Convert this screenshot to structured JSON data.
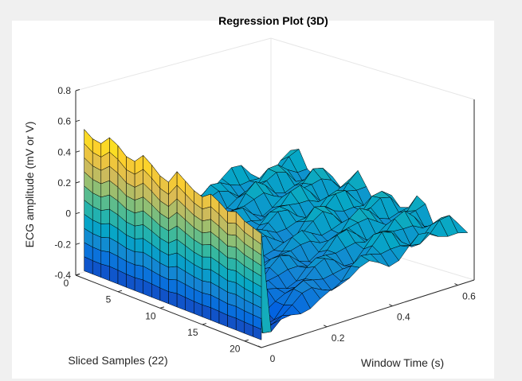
{
  "chart_data": {
    "type": "surface3d",
    "title": "Regression Plot (3D)",
    "xlabel": "Window Time (s)",
    "ylabel": "Sliced Samples (22)",
    "zlabel": "ECG amplitude (mV or V)",
    "xlim": [
      0,
      0.65
    ],
    "ylim": [
      0,
      22
    ],
    "zlim": [
      -0.4,
      0.8
    ],
    "x_ticks": [
      "0",
      "0.2",
      "0.4",
      "0.6"
    ],
    "x_tick_values": [
      0,
      0.2,
      0.4,
      0.6
    ],
    "y_ticks": [
      "0",
      "5",
      "10",
      "15",
      "20"
    ],
    "y_tick_values": [
      0,
      5,
      10,
      15,
      20
    ],
    "z_ticks": [
      "-0.4",
      "-0.2",
      "0",
      "0.2",
      "0.4",
      "0.6",
      "0.8"
    ],
    "z_tick_values": [
      -0.4,
      -0.2,
      0,
      0.2,
      0.4,
      0.6,
      0.8
    ],
    "colormap": "parula",
    "colormap_stops": [
      "#352a87",
      "#0363e1",
      "#1485d4",
      "#06a7c6",
      "#38b99e",
      "#92bf73",
      "#d9ba56",
      "#fcce2e",
      "#f9fb0e"
    ],
    "edge_color": "#000000",
    "grid": false,
    "surface": {
      "x_samples": [
        0.0,
        0.03,
        0.06,
        0.09,
        0.12,
        0.15,
        0.18,
        0.21,
        0.24,
        0.27,
        0.3,
        0.33,
        0.36,
        0.39,
        0.42,
        0.45,
        0.48,
        0.51,
        0.54,
        0.57,
        0.6,
        0.63
      ],
      "y_samples": [
        1,
        2,
        3,
        4,
        5,
        6,
        7,
        8,
        9,
        10,
        11,
        12,
        13,
        14,
        15,
        16,
        17,
        18,
        19,
        20,
        21,
        22
      ],
      "start_values_z": [
        0.57,
        0.53,
        0.52,
        0.58,
        0.55,
        0.5,
        0.49,
        0.55,
        0.51,
        0.46,
        0.44,
        0.53,
        0.49,
        0.45,
        0.43,
        0.47,
        0.44,
        0.4,
        0.42,
        0.38,
        0.36,
        0.34
      ],
      "base_level_z": -0.35,
      "tail_peak_z": 0.15,
      "tail_end_z": -0.05
    }
  }
}
